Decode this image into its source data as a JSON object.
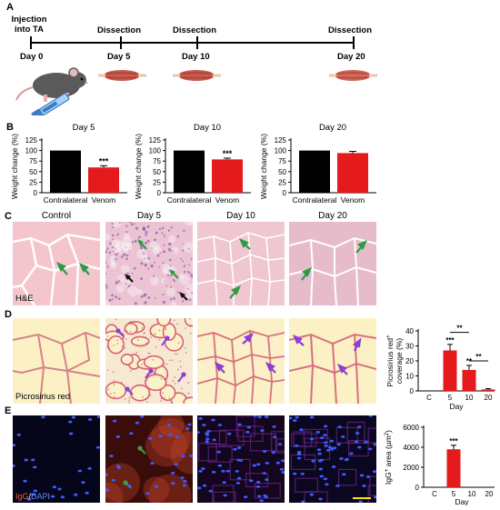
{
  "panels": {
    "a": "A",
    "b": "B",
    "c": "C",
    "d": "D",
    "e": "E"
  },
  "timeline": {
    "injection_line1": "Injection",
    "injection_line2": "into TA",
    "events": [
      {
        "label": "Dissection",
        "day": "Day 5"
      },
      {
        "label": "Dissection",
        "day": "Day 10"
      },
      {
        "label": "Dissection",
        "day": "Day 20"
      }
    ],
    "start_day": "Day 0"
  },
  "weights": {
    "ylabel": "Weight change (%)",
    "categories": [
      "Contralateral",
      "Venom"
    ],
    "colors": {
      "contralateral": "#000000",
      "venom": "#e41a1c"
    },
    "charts": [
      {
        "title": "Day 5",
        "values": [
          100,
          60
        ],
        "error": [
          0,
          4
        ],
        "sig": "***"
      },
      {
        "title": "Day 10",
        "values": [
          100,
          79
        ],
        "error": [
          0,
          3
        ],
        "sig": "***"
      },
      {
        "title": "Day 20",
        "values": [
          100,
          94
        ],
        "error": [
          0,
          4
        ],
        "sig": ""
      }
    ],
    "ticks": [
      "0",
      "25",
      "50",
      "75",
      "100",
      "125"
    ]
  },
  "histology": {
    "columns": [
      "Control",
      "Day 5",
      "Day 10",
      "Day 20"
    ],
    "he_label": "H&E",
    "picro_label": "Picrosirius red",
    "ifl_label_igg": "IgG",
    "ifl_label_sep": "/",
    "ifl_label_dapi": "DAPI"
  },
  "chart_data": [
    {
      "type": "bar",
      "title": "Day 5",
      "categories": [
        "Contralateral",
        "Venom"
      ],
      "values": [
        100,
        60
      ],
      "ylabel": "Weight change (%)",
      "ylim": [
        0,
        125
      ],
      "annotation": "***"
    },
    {
      "type": "bar",
      "title": "Day 10",
      "categories": [
        "Contralateral",
        "Venom"
      ],
      "values": [
        100,
        79
      ],
      "ylabel": "Weight change (%)",
      "ylim": [
        0,
        125
      ],
      "annotation": "***"
    },
    {
      "type": "bar",
      "title": "Day 20",
      "categories": [
        "Contralateral",
        "Venom"
      ],
      "values": [
        100,
        94
      ],
      "ylabel": "Weight change (%)",
      "ylim": [
        0,
        125
      ]
    },
    {
      "type": "bar",
      "categories": [
        "C",
        "5",
        "10",
        "20"
      ],
      "values": [
        0,
        27,
        14,
        1
      ],
      "error": [
        0,
        4,
        3,
        0.5
      ],
      "xlabel": "Day",
      "ylabel_line1": "Picrosirius red",
      "ylabel_sup": "+",
      "ylabel_line2": "coverage (%)",
      "ylim": [
        0,
        40
      ],
      "ticks": [
        "0",
        "10",
        "20",
        "30",
        "40"
      ],
      "annotations": [
        "***",
        "**"
      ],
      "brackets": [
        {
          "from": "5",
          "to": "10",
          "label": "**"
        },
        {
          "from": "10",
          "to": "20",
          "label": "**"
        }
      ]
    },
    {
      "type": "bar",
      "categories": [
        "C",
        "5",
        "10",
        "20"
      ],
      "values": [
        0,
        3800,
        0,
        0
      ],
      "error": [
        0,
        400,
        0,
        0
      ],
      "xlabel": "Day",
      "ylabel_pre": "IgG",
      "ylabel_sup": "+",
      "ylabel_post": " area (µm",
      "ylabel_sup2": "2",
      "ylabel_end": ")",
      "ylim": [
        0,
        6000
      ],
      "ticks": [
        "0",
        "2000",
        "4000",
        "6000"
      ],
      "annotations": [
        "***"
      ]
    }
  ]
}
